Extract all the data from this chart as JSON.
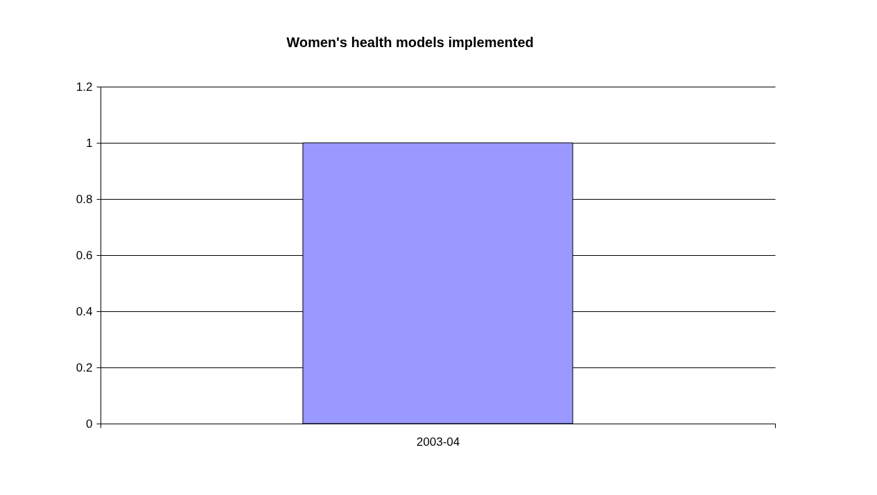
{
  "chart_data": {
    "type": "bar",
    "title": "Women's health models implemented",
    "categories": [
      "2003-04"
    ],
    "values": [
      1
    ],
    "color": "#9999ff",
    "ylim": [
      0,
      1.2
    ],
    "yticks": [
      0,
      0.2,
      0.4,
      0.6,
      0.8,
      1,
      1.2
    ],
    "grid": "y"
  }
}
